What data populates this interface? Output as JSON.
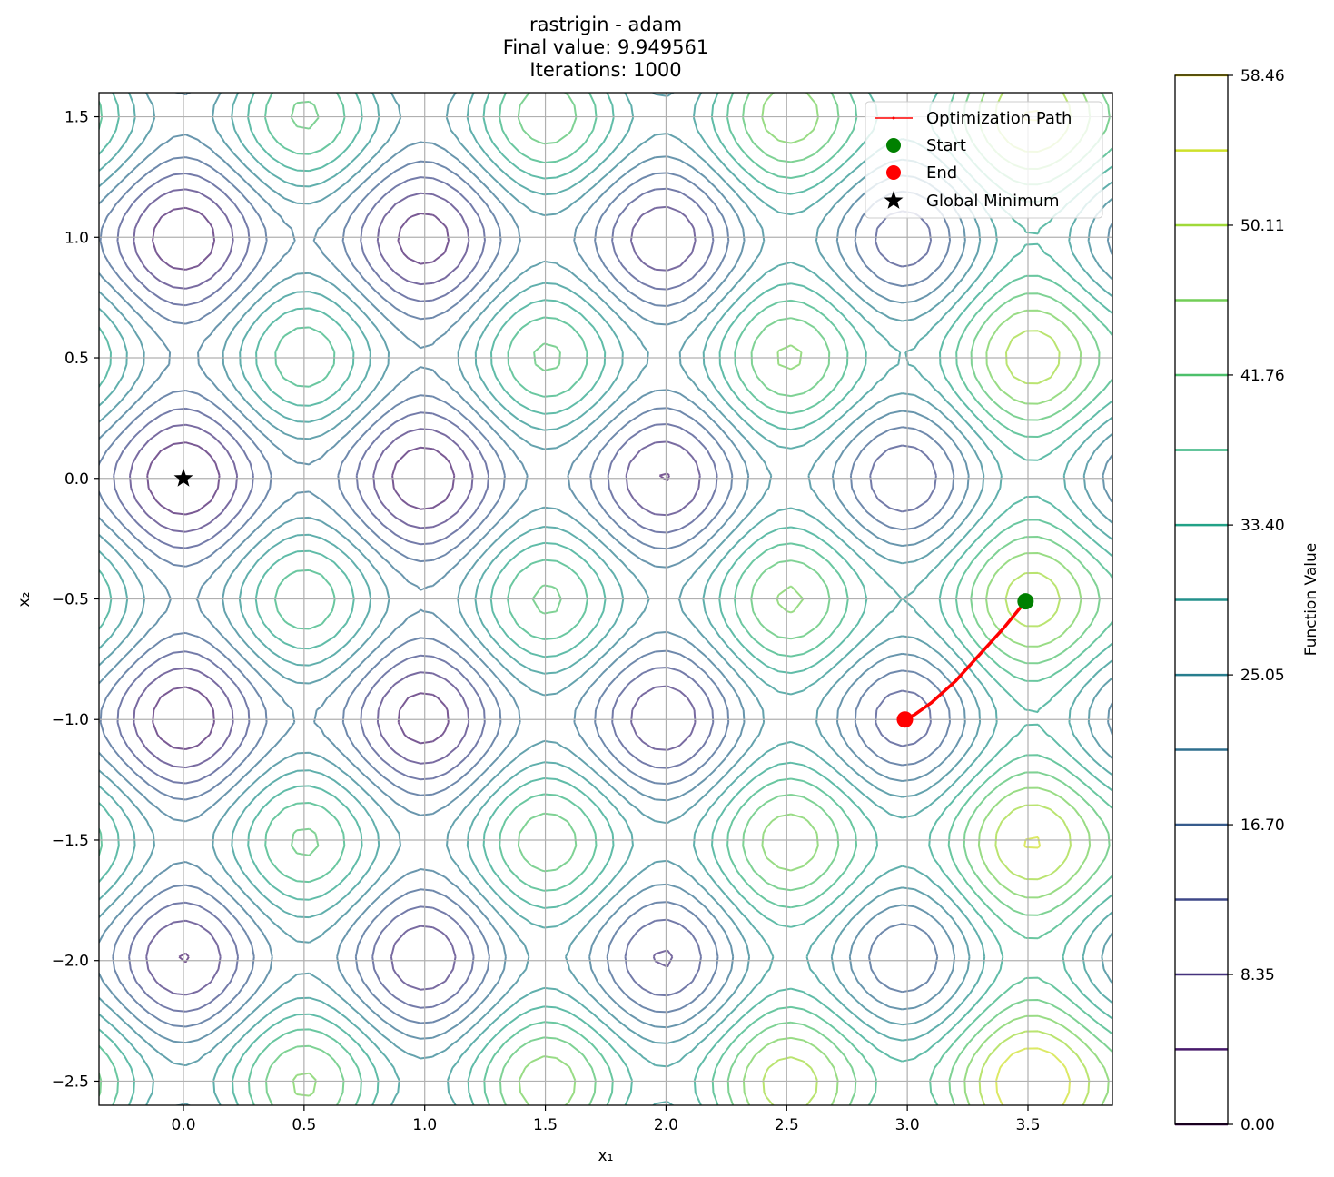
{
  "chart_data": {
    "type": "contour",
    "function": "rastrigin",
    "optimizer": "adam",
    "title_lines": [
      "rastrigin - adam",
      "Final value: 9.949561",
      "Iterations: 1000"
    ],
    "xlabel": "x₁",
    "ylabel": "x₂",
    "xlim": [
      -0.35,
      3.85
    ],
    "ylim": [
      -2.6,
      1.6
    ],
    "xticks": [
      0.0,
      0.5,
      1.0,
      1.5,
      2.0,
      2.5,
      3.0,
      3.5
    ],
    "xtick_labels": [
      "0.0",
      "0.5",
      "1.0",
      "1.5",
      "2.0",
      "2.5",
      "3.0",
      "3.5"
    ],
    "yticks": [
      1.5,
      1.0,
      0.5,
      0.0,
      -0.5,
      -1.0,
      -1.5,
      -2.0,
      -2.5
    ],
    "ytick_labels": [
      "1.5",
      "1.0",
      "0.5",
      "0.0",
      "−0.5",
      "−1.0",
      "−1.5",
      "−2.0",
      "−2.5"
    ],
    "grid": true,
    "contour_levels": [
      0.0,
      4.18,
      8.35,
      12.53,
      16.7,
      20.88,
      25.05,
      29.23,
      33.4,
      37.58,
      41.76,
      45.93,
      50.11,
      54.28,
      58.46
    ],
    "colorbar": {
      "label": "Function Value",
      "tick_values": [
        0.0,
        8.35,
        16.7,
        25.05,
        33.4,
        41.76,
        50.11,
        58.46
      ],
      "tick_labels": [
        "0.00",
        "8.35",
        "16.70",
        "25.05",
        "33.40",
        "41.76",
        "50.11",
        "58.46"
      ],
      "range": [
        0.0,
        58.46
      ]
    },
    "path": {
      "name": "Optimization Path",
      "color": "#ff0000",
      "x": [
        3.49,
        3.4,
        3.3,
        3.2,
        3.1,
        3.03,
        2.99
      ],
      "y": [
        -0.51,
        -0.62,
        -0.73,
        -0.84,
        -0.93,
        -0.98,
        -1.0
      ]
    },
    "start": {
      "name": "Start",
      "x": 3.49,
      "y": -0.51,
      "color": "#008000"
    },
    "end": {
      "name": "End",
      "x": 2.99,
      "y": -1.0,
      "color": "#ff0000"
    },
    "global_minimum": {
      "name": "Global Minimum",
      "x": 0.0,
      "y": 0.0,
      "color": "#000000"
    },
    "legend_position": "top-right",
    "legend_entries": [
      "Optimization Path",
      "Start",
      "End",
      "Global Minimum"
    ]
  }
}
